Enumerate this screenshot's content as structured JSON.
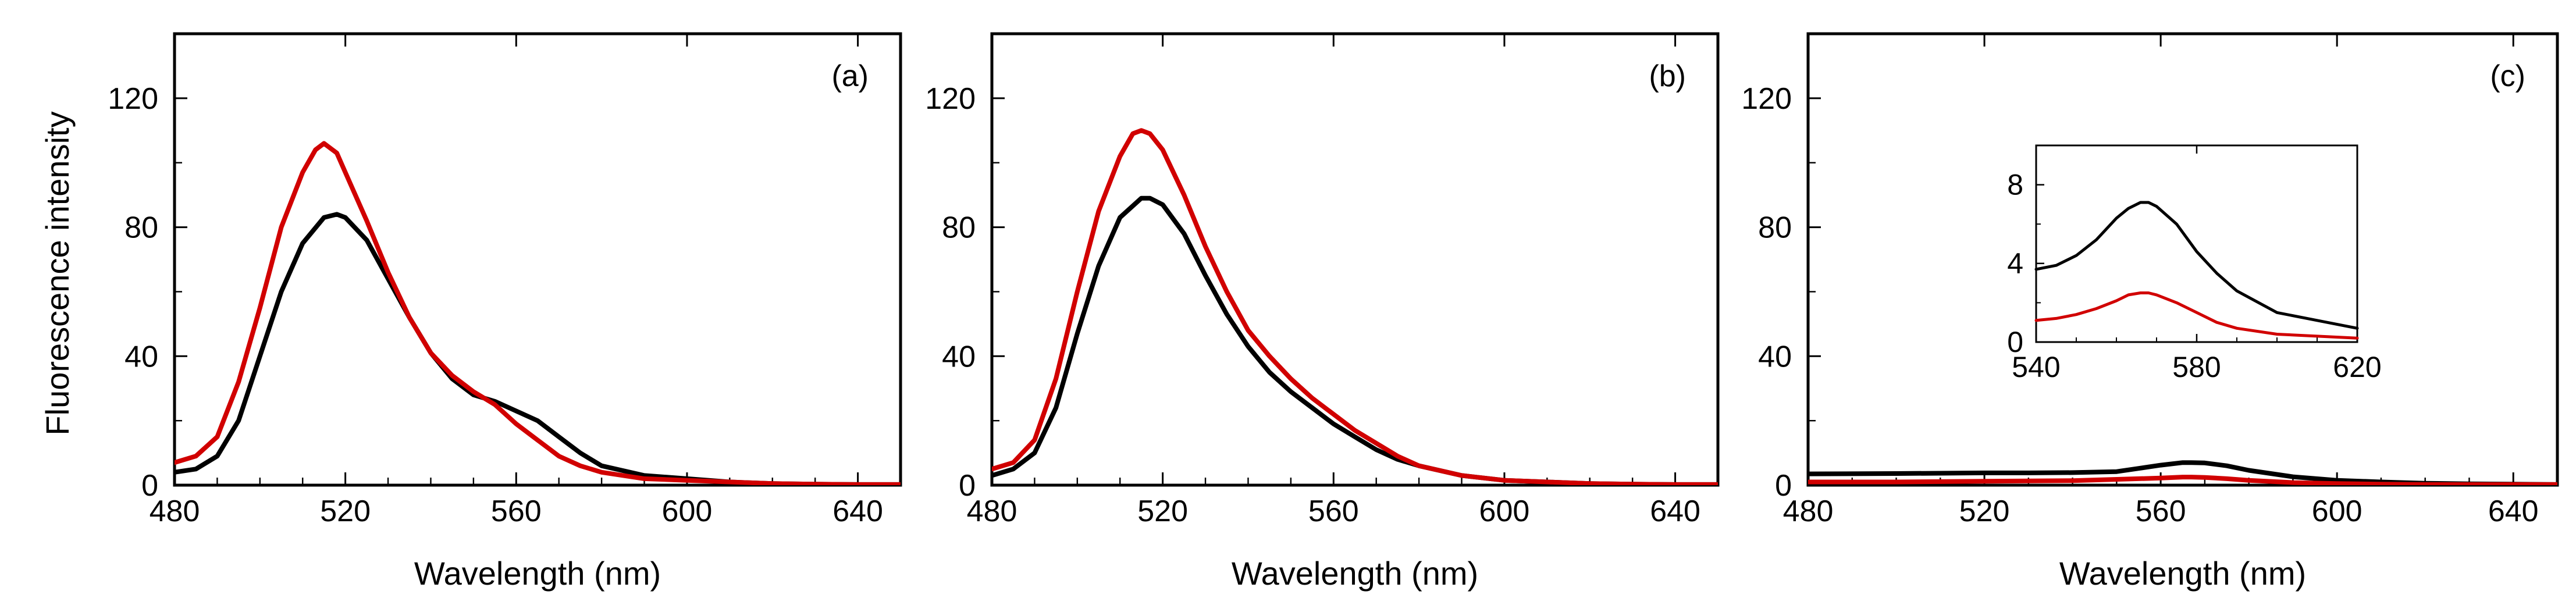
{
  "figure": {
    "ylabel": "Fluorescence intensity",
    "colors": {
      "black_series": "#000000",
      "red_series": "#d10000",
      "axis": "#000000"
    }
  },
  "chart_data": [
    {
      "type": "line",
      "panel_label": "(a)",
      "xlabel": "Wavelength (nm)",
      "ylabel": "Fluorescence intensity",
      "xlim": [
        480,
        650
      ],
      "ylim": [
        0,
        140
      ],
      "xticks": [
        480,
        520,
        560,
        600,
        640
      ],
      "yticks": [
        0,
        40,
        80,
        120
      ],
      "series": [
        {
          "name": "black",
          "color": "#000000",
          "x": [
            480,
            485,
            490,
            495,
            500,
            505,
            510,
            515,
            518,
            520,
            525,
            530,
            535,
            540,
            545,
            550,
            555,
            560,
            565,
            570,
            575,
            580,
            590,
            600,
            610,
            620,
            630,
            640,
            650
          ],
          "y": [
            4,
            5,
            9,
            20,
            40,
            60,
            75,
            83,
            84,
            83,
            76,
            64,
            52,
            41,
            33,
            28,
            26,
            23,
            20,
            15,
            10,
            6,
            3,
            2,
            1,
            0.5,
            0.3,
            0.2,
            0.2
          ]
        },
        {
          "name": "red",
          "color": "#d10000",
          "x": [
            480,
            485,
            490,
            495,
            500,
            505,
            510,
            513,
            515,
            518,
            520,
            525,
            530,
            535,
            540,
            545,
            550,
            555,
            560,
            565,
            570,
            575,
            580,
            590,
            600,
            610,
            620,
            630,
            640,
            650
          ],
          "y": [
            7,
            9,
            15,
            32,
            55,
            80,
            97,
            104,
            106,
            103,
            97,
            82,
            66,
            52,
            41,
            34,
            29,
            25,
            19,
            14,
            9,
            6,
            4,
            2,
            1.5,
            1,
            0.5,
            0.3,
            0.2,
            0.2
          ]
        }
      ]
    },
    {
      "type": "line",
      "panel_label": "(b)",
      "xlabel": "Wavelength (nm)",
      "ylabel": "",
      "xlim": [
        480,
        650
      ],
      "ylim": [
        0,
        140
      ],
      "xticks": [
        480,
        520,
        560,
        600,
        640
      ],
      "yticks": [
        0,
        40,
        80,
        120
      ],
      "series": [
        {
          "name": "black",
          "color": "#000000",
          "x": [
            480,
            485,
            490,
            495,
            500,
            505,
            510,
            515,
            517,
            520,
            525,
            530,
            535,
            540,
            545,
            550,
            555,
            560,
            565,
            570,
            575,
            580,
            590,
            600,
            610,
            620,
            630,
            640,
            650
          ],
          "y": [
            3,
            5,
            10,
            24,
            47,
            68,
            83,
            89,
            89,
            87,
            78,
            65,
            53,
            43,
            35,
            29,
            24,
            19,
            15,
            11,
            8,
            6,
            3,
            1.5,
            1,
            0.5,
            0.3,
            0.2,
            0.2
          ]
        },
        {
          "name": "red",
          "color": "#d10000",
          "x": [
            480,
            485,
            490,
            495,
            500,
            505,
            510,
            513,
            515,
            517,
            520,
            525,
            530,
            535,
            540,
            545,
            550,
            555,
            560,
            565,
            570,
            575,
            580,
            590,
            600,
            610,
            620,
            630,
            640,
            650
          ],
          "y": [
            5,
            7,
            14,
            33,
            60,
            85,
            102,
            109,
            110,
            109,
            104,
            90,
            74,
            60,
            48,
            40,
            33,
            27,
            22,
            17,
            13,
            9,
            6,
            3,
            1.5,
            1,
            0.5,
            0.3,
            0.2,
            0.2
          ]
        }
      ]
    },
    {
      "type": "line",
      "panel_label": "(c)",
      "xlabel": "Wavelength (nm)",
      "ylabel": "",
      "xlim": [
        480,
        650
      ],
      "ylim": [
        0,
        140
      ],
      "xticks": [
        480,
        520,
        560,
        600,
        640
      ],
      "yticks": [
        0,
        40,
        80,
        120
      ],
      "series": [
        {
          "name": "black",
          "color": "#000000",
          "x": [
            480,
            500,
            520,
            530,
            540,
            550,
            555,
            560,
            565,
            567,
            570,
            575,
            580,
            590,
            600,
            610,
            620,
            630,
            640,
            650
          ],
          "y": [
            3.5,
            3.6,
            3.8,
            3.8,
            3.9,
            4.2,
            5.2,
            6.2,
            7,
            7,
            6.9,
            6,
            4.6,
            2.6,
            1.5,
            1,
            0.6,
            0.4,
            0.3,
            0.2
          ]
        },
        {
          "name": "red",
          "color": "#d10000",
          "x": [
            480,
            500,
            520,
            540,
            550,
            560,
            565,
            567,
            570,
            575,
            580,
            590,
            600,
            610,
            620,
            630,
            640,
            650
          ],
          "y": [
            1,
            1,
            1.2,
            1.4,
            1.8,
            2.2,
            2.5,
            2.5,
            2.4,
            2,
            1.5,
            0.8,
            0.5,
            0.3,
            0.2,
            0.2,
            0.2,
            0.2
          ]
        }
      ],
      "inset": {
        "type": "line",
        "xlim": [
          540,
          620
        ],
        "ylim": [
          0,
          10
        ],
        "xticks": [
          540,
          580,
          620
        ],
        "yticks": [
          0,
          4,
          8
        ],
        "series": [
          {
            "name": "black",
            "color": "#000000",
            "x": [
              540,
              545,
              550,
              555,
              560,
              563,
              566,
              568,
              570,
              575,
              580,
              585,
              590,
              600,
              610,
              620
            ],
            "y": [
              3.7,
              3.9,
              4.4,
              5.2,
              6.3,
              6.8,
              7.1,
              7.1,
              6.9,
              6,
              4.6,
              3.5,
              2.6,
              1.5,
              1.1,
              0.7
            ]
          },
          {
            "name": "red",
            "color": "#d10000",
            "x": [
              540,
              545,
              550,
              555,
              560,
              563,
              566,
              568,
              570,
              575,
              580,
              585,
              590,
              600,
              610,
              620
            ],
            "y": [
              1.1,
              1.2,
              1.4,
              1.7,
              2.1,
              2.4,
              2.5,
              2.5,
              2.4,
              2,
              1.5,
              1,
              0.7,
              0.4,
              0.3,
              0.2
            ]
          }
        ]
      }
    }
  ]
}
